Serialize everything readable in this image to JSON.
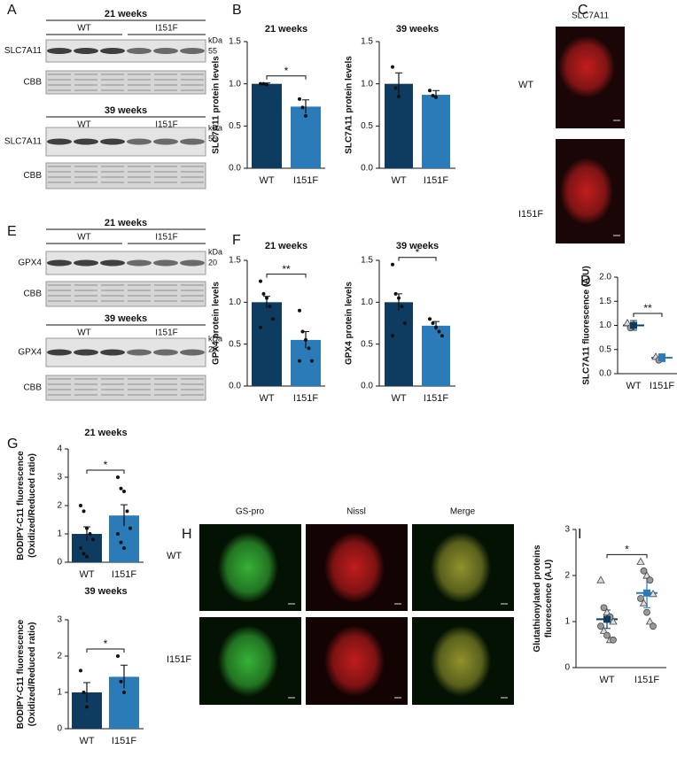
{
  "figure": {
    "panel_letters": [
      "A",
      "B",
      "C",
      "D",
      "E",
      "F",
      "G",
      "H",
      "I"
    ],
    "blots": [
      {
        "title": "21 weeks",
        "groups": [
          "WT",
          "I151F"
        ],
        "rows": [
          "SLC7A11",
          "CBB"
        ],
        "unit": "kDa",
        "marker": "55"
      },
      {
        "title": "39 weeks",
        "groups": [
          "WT",
          "I151F"
        ],
        "rows": [
          "SLC7A11",
          "CBB"
        ],
        "unit": "kDa",
        "marker": "55"
      },
      {
        "title": "21 weeks",
        "groups": [
          "WT",
          "I151F"
        ],
        "rows": [
          "GPX4",
          "CBB"
        ],
        "unit": "kDa",
        "marker": "20"
      },
      {
        "title": "39 weeks",
        "groups": [
          "WT",
          "I151F"
        ],
        "rows": [
          "GPX4",
          "CBB"
        ],
        "unit": "kDa",
        "marker": "20"
      }
    ],
    "microscopy_c": {
      "title": "SLC7A11",
      "rows": [
        "WT",
        "I151F"
      ]
    },
    "microscopy_h": {
      "columns": [
        "GS-pro",
        "Nissl",
        "Merge"
      ],
      "rows": [
        "WT",
        "I151F"
      ]
    }
  },
  "chart_data": [
    {
      "type": "bar",
      "title": "21 weeks",
      "ylabel": [
        "SLC7A11 protein levels"
      ],
      "categories": [
        "WT",
        "I151F"
      ],
      "colors": [
        "#0e3c60",
        "#2b7bb9"
      ],
      "values": [
        1.0,
        0.73
      ],
      "errors": [
        0.01,
        0.08
      ],
      "points": [
        [
          1.0,
          1.0,
          0.99
        ],
        [
          0.82,
          0.72,
          0.62
        ]
      ],
      "ylim": [
        0,
        1.5
      ],
      "yticks": [
        {
          "value": 0,
          "label": "0.0"
        },
        {
          "value": 0.5,
          "label": "0.5"
        },
        {
          "value": 1,
          "label": "1.0"
        },
        {
          "value": 1.5,
          "label": "1.5"
        }
      ],
      "significance": "*"
    },
    {
      "type": "bar",
      "title": "39 weeks",
      "ylabel": [
        "SLC7A11 protein levels"
      ],
      "categories": [
        "WT",
        "I151F"
      ],
      "colors": [
        "#0e3c60",
        "#2b7bb9"
      ],
      "values": [
        1.0,
        0.87
      ],
      "errors": [
        0.13,
        0.05
      ],
      "points": [
        [
          1.2,
          0.95,
          0.85
        ],
        [
          0.92,
          0.86,
          0.84
        ]
      ],
      "ylim": [
        0,
        1.5
      ],
      "yticks": [
        {
          "value": 0,
          "label": "0.0"
        },
        {
          "value": 0.5,
          "label": "0.5"
        },
        {
          "value": 1,
          "label": "1.0"
        },
        {
          "value": 1.5,
          "label": "1.5"
        }
      ]
    },
    {
      "type": "dot",
      "ylabel": [
        "SLC7A11 fluorescence (A.U)"
      ],
      "categories": [
        "WT",
        "I151F"
      ],
      "colors": [
        "#0e3c60",
        "#2b7bb9"
      ],
      "values": [
        1.0,
        0.33
      ],
      "errors": [
        0.1,
        0.08
      ],
      "points": [
        [
          1.05,
          0.95
        ],
        [
          0.35,
          0.28
        ]
      ],
      "ylim": [
        0,
        2
      ],
      "yticks": [
        {
          "value": 0,
          "label": "0.0"
        },
        {
          "value": 0.5,
          "label": "0.5"
        },
        {
          "value": 1,
          "label": "1.0"
        },
        {
          "value": 1.5,
          "label": "1.5"
        },
        {
          "value": 2,
          "label": "2.0"
        }
      ],
      "significance": "**"
    },
    {
      "type": "bar",
      "title": "21 weeks",
      "ylabel": [
        "GPX4 protein levels"
      ],
      "categories": [
        "WT",
        "I151F"
      ],
      "colors": [
        "#0e3c60",
        "#2b7bb9"
      ],
      "values": [
        1.0,
        0.55
      ],
      "errors": [
        0.07,
        0.1
      ],
      "points": [
        [
          1.25,
          1.1,
          1.05,
          0.95,
          0.8,
          0.7
        ],
        [
          0.9,
          0.65,
          0.55,
          0.45,
          0.3,
          0.3
        ]
      ],
      "ylim": [
        0,
        1.5
      ],
      "yticks": [
        {
          "value": 0,
          "label": "0.0"
        },
        {
          "value": 0.5,
          "label": "0.5"
        },
        {
          "value": 1,
          "label": "1.0"
        },
        {
          "value": 1.5,
          "label": "1.5"
        }
      ],
      "significance": "**"
    },
    {
      "type": "bar",
      "title": "39 weeks",
      "ylabel": [
        "GPX4 protein levels"
      ],
      "categories": [
        "WT",
        "I151F"
      ],
      "colors": [
        "#0e3c60",
        "#2b7bb9"
      ],
      "values": [
        1.0,
        0.72
      ],
      "errors": [
        0.1,
        0.05
      ],
      "points": [
        [
          1.45,
          1.1,
          1.05,
          0.95,
          0.75,
          0.6
        ],
        [
          0.8,
          0.75,
          0.7,
          0.65,
          0.6
        ]
      ],
      "ylim": [
        0,
        1.5
      ],
      "yticks": [
        {
          "value": 0,
          "label": "0.0"
        },
        {
          "value": 0.5,
          "label": "0.5"
        },
        {
          "value": 1,
          "label": "1.0"
        },
        {
          "value": 1.5,
          "label": "1.5"
        }
      ],
      "significance": "*"
    },
    {
      "type": "bar",
      "title": "21 weeks",
      "ylabel": [
        "BODIPY-C11 fluorescence",
        "(Oxidized/Reduced ratio)"
      ],
      "categories": [
        "WT",
        "I151F"
      ],
      "colors": [
        "#0e3c60",
        "#2b7bb9"
      ],
      "values": [
        1.0,
        1.65
      ],
      "errors": [
        0.25,
        0.38
      ],
      "points": [
        [
          2.0,
          1.8,
          1.2,
          1.0,
          0.8,
          0.5,
          0.3,
          0.2
        ],
        [
          3.0,
          2.6,
          2.5,
          1.8,
          1.2,
          1.0,
          0.7,
          0.5
        ]
      ],
      "ylim": [
        0,
        4
      ],
      "yticks": [
        0,
        1,
        2,
        3,
        4
      ],
      "significance": "*"
    },
    {
      "type": "bar",
      "title": "39 weeks",
      "ylabel": [
        "BODIPY-C11 fluorescence",
        "(Oxidized/Reduced ratio)"
      ],
      "categories": [
        "WT",
        "I151F"
      ],
      "colors": [
        "#0e3c60",
        "#2b7bb9"
      ],
      "values": [
        1.0,
        1.43
      ],
      "errors": [
        0.27,
        0.32
      ],
      "points": [
        [
          1.6,
          1.0,
          0.6
        ],
        [
          2.0,
          1.3,
          1.0
        ]
      ],
      "ylim": [
        0,
        3
      ],
      "yticks": [
        0,
        1,
        2,
        3
      ],
      "significance": "*"
    },
    {
      "type": "dot",
      "ylabel": [
        "Glutathionylated proteins",
        "fluorescence (A.U)"
      ],
      "categories": [
        "WT",
        "I151F"
      ],
      "colors": [
        "#0e3c60",
        "#2b7bb9"
      ],
      "values": [
        1.05,
        1.62
      ],
      "errors": [
        0.2,
        0.32
      ],
      "points": [
        [
          1.9,
          1.3,
          1.2,
          1.1,
          1.0,
          0.9,
          0.8,
          0.7,
          0.6,
          0.6
        ],
        [
          2.3,
          2.1,
          2.0,
          1.9,
          1.6,
          1.5,
          1.4,
          1.2,
          1.0,
          0.9
        ]
      ],
      "ylim": [
        0,
        3
      ],
      "yticks": [
        0,
        1,
        2,
        3
      ],
      "significance": "*"
    }
  ]
}
